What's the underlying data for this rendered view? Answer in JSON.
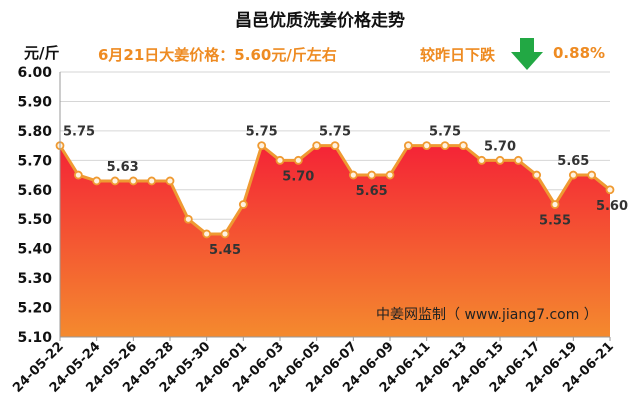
{
  "header": {
    "title": "昌邑优质洗姜价格走势",
    "unit": "元/斤",
    "headline": "6月21日大姜价格：5.60元/斤左右",
    "compare_text": "较昨日下跌",
    "change_pct": "0.88%",
    "trend_icon": "down-arrow-icon"
  },
  "watermark": "中姜网监制（ www.jiang7.com ）",
  "colors": {
    "accent": "#ee8b22",
    "arrow": "#22a844",
    "line": "#ef9a32",
    "fill_top": "#f42436",
    "fill_bottom": "#f48a2e"
  },
  "chart_data": {
    "type": "area",
    "title": "昌邑优质洗姜价格走势",
    "ylabel": "元/斤",
    "xlabel": "",
    "ylim": [
      5.1,
      6.0
    ],
    "yticks": [
      "6.00",
      "5.90",
      "5.80",
      "5.70",
      "5.60",
      "5.50",
      "5.40",
      "5.30",
      "5.20",
      "5.10"
    ],
    "x": [
      "24-05-22",
      "24-05-23",
      "24-05-24",
      "24-05-25",
      "24-05-26",
      "24-05-27",
      "24-05-28",
      "24-05-29",
      "24-05-30",
      "24-05-31",
      "24-06-01",
      "24-06-02",
      "24-06-03",
      "24-06-04",
      "24-06-05",
      "24-06-06",
      "24-06-07",
      "24-06-08",
      "24-06-09",
      "24-06-10",
      "24-06-11",
      "24-06-12",
      "24-06-13",
      "24-06-14",
      "24-06-15",
      "24-06-16",
      "24-06-17",
      "24-06-18",
      "24-06-19",
      "24-06-20",
      "24-06-21"
    ],
    "xtick_labels": [
      "24-05-22",
      "24-05-24",
      "24-05-26",
      "24-05-28",
      "24-05-30",
      "24-06-01",
      "24-06-03",
      "24-06-05",
      "24-06-07",
      "24-06-09",
      "24-06-11",
      "24-06-13",
      "24-06-15",
      "24-06-17",
      "24-06-19",
      "24-06-21"
    ],
    "values": [
      5.75,
      5.65,
      5.63,
      5.63,
      5.63,
      5.63,
      5.63,
      5.5,
      5.45,
      5.45,
      5.55,
      5.75,
      5.7,
      5.7,
      5.75,
      5.75,
      5.65,
      5.65,
      5.65,
      5.75,
      5.75,
      5.75,
      5.75,
      5.7,
      5.7,
      5.7,
      5.65,
      5.55,
      5.65,
      5.65,
      5.6
    ],
    "data_labels": [
      {
        "index": 0,
        "text": "5.75"
      },
      {
        "index": 2,
        "text": "5.63"
      },
      {
        "index": 9,
        "text": "5.45"
      },
      {
        "index": 11,
        "text": "5.75"
      },
      {
        "index": 13,
        "text": "5.70"
      },
      {
        "index": 15,
        "text": "5.75"
      },
      {
        "index": 17,
        "text": "5.65"
      },
      {
        "index": 21,
        "text": "5.75"
      },
      {
        "index": 24,
        "text": "5.70"
      },
      {
        "index": 27,
        "text": "5.55"
      },
      {
        "index": 28,
        "text": "5.65"
      },
      {
        "index": 30,
        "text": "5.60"
      }
    ],
    "grid": true
  }
}
